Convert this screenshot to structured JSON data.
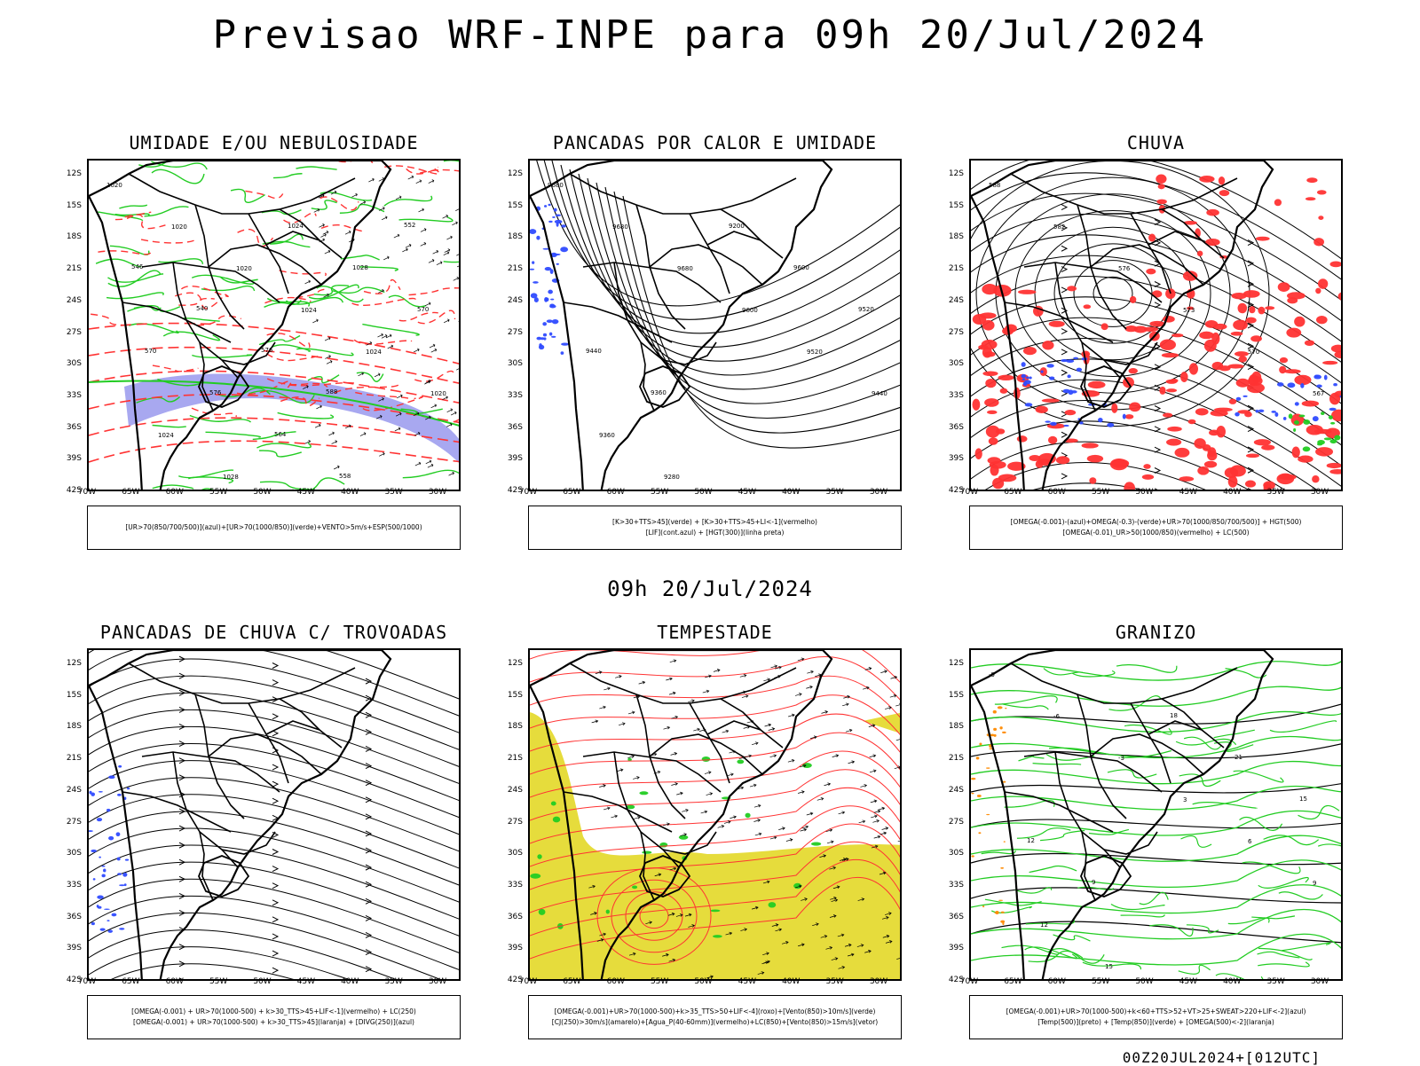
{
  "header": {
    "title": "Previsao WRF-INPE  para 09h 20/Jul/2024",
    "mid_date": "09h 20/Jul/2024",
    "footer": "00Z20JUL2024+[012UTC]"
  },
  "axes": {
    "lat_labels": [
      "12S",
      "15S",
      "18S",
      "21S",
      "24S",
      "27S",
      "30S",
      "33S",
      "36S",
      "39S",
      "42S"
    ],
    "lon_labels": [
      "70W",
      "65W",
      "60W",
      "55W",
      "50W",
      "45W",
      "40W",
      "35W",
      "30W"
    ]
  },
  "colors": {
    "blue_fill": "#a8a8f0",
    "blue_pixel": "#2f4bff",
    "green": "#22cc22",
    "red": "#ff3333",
    "yellow": "#e6dc3c",
    "orange": "#ff8a00"
  },
  "panels": [
    {
      "id": "umidade",
      "title": "UMIDADE E/OU NEBULOSIDADE",
      "legend": [
        "[UR>70(850/700/500)](azul)+[UR>70(1000/850)](verde)+VENTO>5m/s+ESP(500/1000)"
      ],
      "contour_labels": [
        "1020",
        "1020",
        "1020",
        "1024",
        "1024",
        "1020",
        "1024",
        "1028",
        "1024",
        "1028",
        "570",
        "570",
        "576",
        "564",
        "558",
        "552",
        "546",
        "540",
        "576",
        "588"
      ]
    },
    {
      "id": "pancadas-calor",
      "title": "PANCADAS POR CALOR E UMIDADE",
      "legend": [
        "[K>30+TTS>45](verde) + [K>30+TTS>45+LI<-1](vermelho)",
        "[LIF](cont.azul) + [HGT(300)](linha preta)"
      ],
      "contour_labels": [
        "9680",
        "9680",
        "9680",
        "9600",
        "9520",
        "9440",
        "9360",
        "9280",
        "9200",
        "9600",
        "9520",
        "9440",
        "9360"
      ]
    },
    {
      "id": "chuva",
      "title": "CHUVA",
      "legend": [
        "[OMEGA(-0.001)-(azul)+OMEGA(-0.3)-(verde)+UR>70(1000/850/700/500)] + HGT(500)",
        "[OMEGA(-0.01)_UR>50(1000/850)(vermelho) + LC(500)"
      ],
      "contour_labels": [
        "588",
        "582",
        "576",
        "573",
        "570",
        "567"
      ]
    },
    {
      "id": "pancadas-trovoadas",
      "title": "PANCADAS DE CHUVA C/ TROVOADAS",
      "legend": [
        "[OMEGA(-0.001) + UR>70(1000-500) + k>30_TTS>45+LIF<-1](vermelho) + LC(250)",
        "[OMEGA(-0.001) + UR>70(1000-500) + k>30_TTS>45](laranja) + [DIVG(250)](azul)"
      ],
      "contour_labels": []
    },
    {
      "id": "tempestade",
      "title": "TEMPESTADE",
      "legend": [
        "[OMEGA(-0.001)+UR>70(1000-500)+k>35_TTS>50+LIF<-4](roxo)+[Vento(850)>10m/s](verde)",
        "[CJ(250)>30m/s](amarelo)+[Agua_P(40-60mm)](vermelho)+LC(850)+[Vento(850)>15m/s](vetor)"
      ],
      "contour_labels": []
    },
    {
      "id": "granizo",
      "title": "GRANIZO",
      "legend": [
        "[OMEGA(-0.001)+UR>70(1000-500)+k<60+TTS>52+VT>25+SWEAT>220+LIF<-2](azul)",
        "[Temp(500)](preto) + [Temp(850)](verde) + [OMEGA(500)<-2](laranja)"
      ],
      "contour_labels": [
        "-9",
        "-6",
        "-3",
        "3",
        "6",
        "9",
        "12",
        "15",
        "18",
        "21",
        "15",
        "12",
        "9"
      ]
    }
  ]
}
